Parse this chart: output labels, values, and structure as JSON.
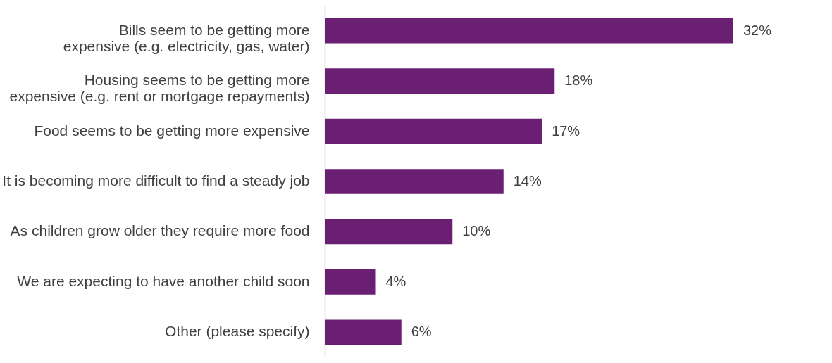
{
  "chart_data": {
    "type": "bar",
    "orientation": "horizontal",
    "categories": [
      "Bills seem to be getting more expensive (e.g. electricity, gas, water)",
      "Housing seems to be getting more expensive (e.g. rent or mortgage repayments)",
      "Food seems to be getting more expensive",
      "It is becoming more difficult to find a steady job",
      "As children grow older they require more food",
      "We are expecting to have another child soon",
      "Other (please specify)"
    ],
    "values": [
      32,
      18,
      17,
      14,
      10,
      4,
      6
    ],
    "value_labels": [
      "32%",
      "18%",
      "17%",
      "14%",
      "10%",
      "4%",
      "6%"
    ],
    "color": "#6a1f73"
  }
}
